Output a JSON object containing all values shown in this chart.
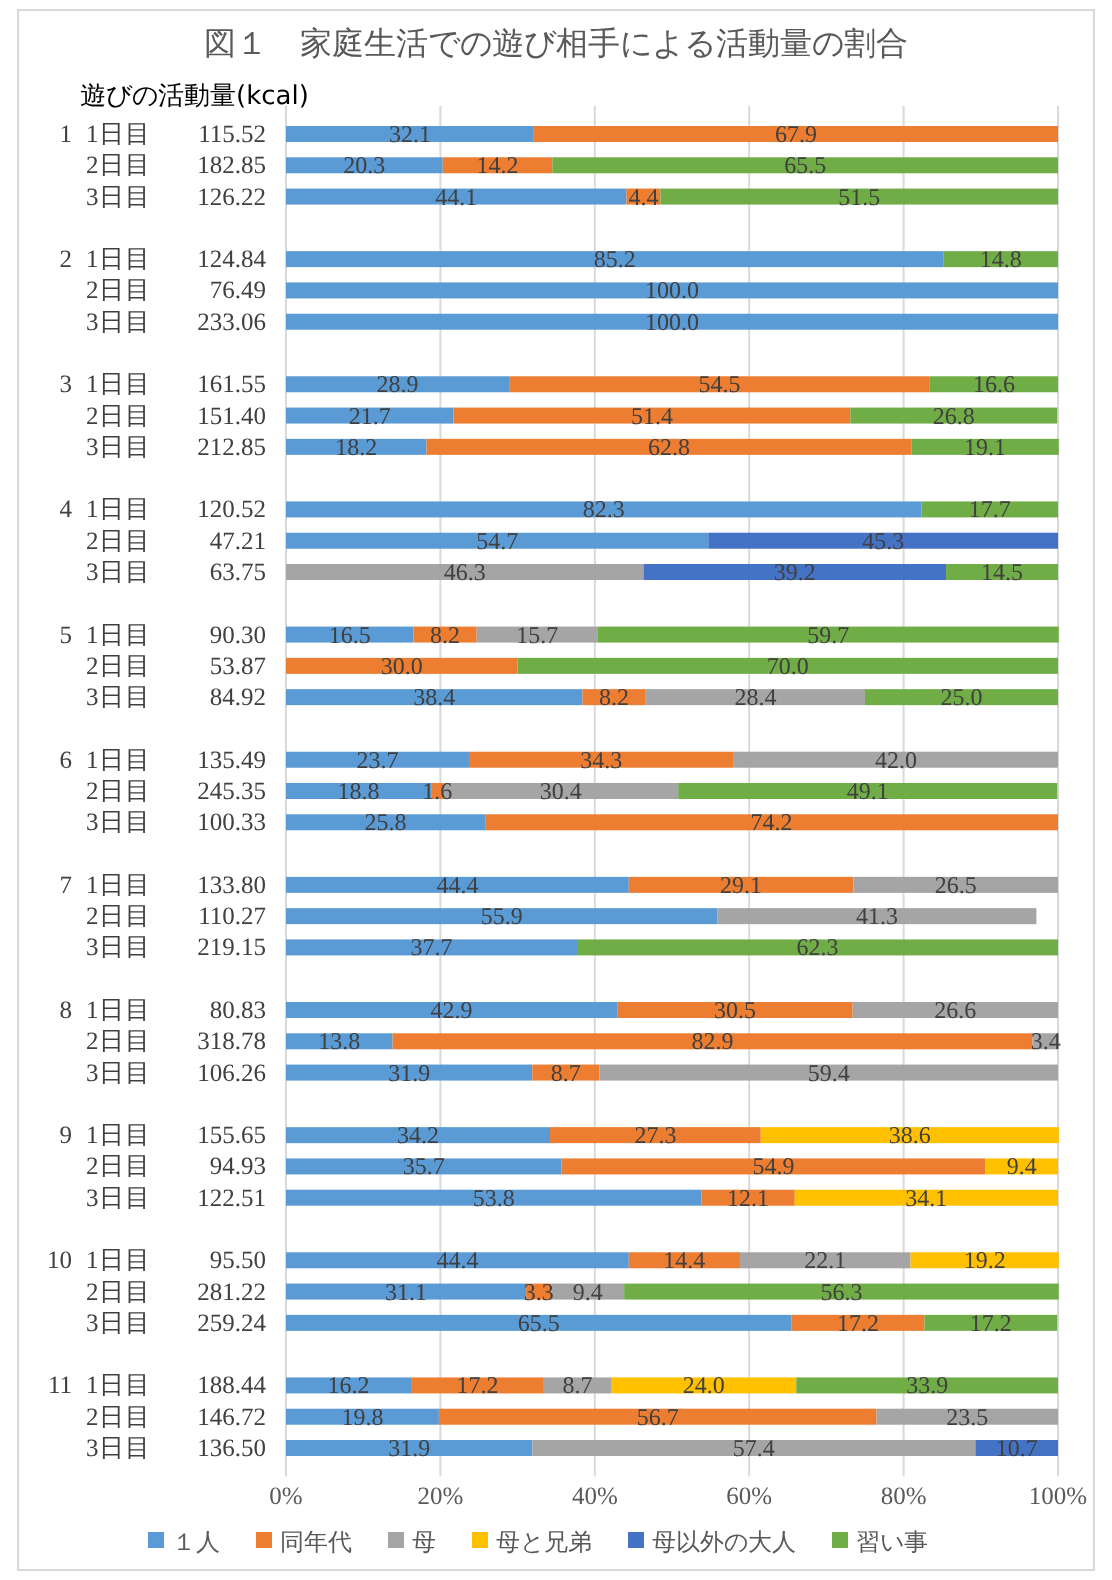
{
  "chart_data": {
    "type": "bar",
    "orientation": "horizontal",
    "stacked": true,
    "title": "図１　家庭生活での遊び相手による活動量の割合",
    "ylabel": "遊びの活動量(kcal)",
    "categories": [
      "1\t1日目\t115.52",
      "\t2日目\t182.85",
      "\t3日目\t126.22",
      null,
      "2\t1日目\t124.84",
      "\t2日目\t76.49",
      "\t3日目\t233.06",
      null,
      "3\t1日目\t161.55",
      "\t2日目\t151.40",
      "\t3日目\t212.85",
      null,
      "4\t1日目\t120.52",
      "\t2日目\t47.21",
      "\t3日目\t63.75",
      null,
      "5\t1日目\t90.30",
      "\t2日目\t53.87",
      "\t3日目\t84.92",
      null,
      "6\t1日目\t135.49",
      "\t2日目\t245.35",
      "\t3日目\t100.33",
      null,
      "7\t1日目\t133.80",
      "\t2日目\t110.27",
      "\t3日目\t219.15",
      null,
      "8\t1日目\t80.83",
      "\t2日目\t318.78",
      "\t3日目\t106.26",
      null,
      "9\t1日目\t155.65",
      "\t2日目\t94.93",
      "\t3日目\t122.51",
      null,
      "10\t1日目\t95.50",
      "\t2日目\t281.22",
      "\t3日目\t259.24",
      null,
      "11\t1日目\t188.44",
      "\t2日目\t146.72",
      "\t3日目\t136.50"
    ],
    "series": [
      {
        "name": "１人",
        "color": "#5b9bd5",
        "values": [
          32.1,
          20.3,
          44.1,
          null,
          85.2,
          100.0,
          100.0,
          null,
          28.9,
          21.7,
          18.2,
          null,
          82.3,
          54.7,
          null,
          null,
          16.5,
          null,
          38.4,
          null,
          23.7,
          18.8,
          25.8,
          null,
          44.4,
          55.9,
          37.7,
          null,
          42.9,
          13.8,
          31.9,
          null,
          34.2,
          35.7,
          53.8,
          null,
          44.4,
          31.1,
          65.5,
          null,
          16.2,
          19.8,
          31.9
        ],
        "value_labels": [
          "32.1",
          "20.3",
          "44.1",
          null,
          "85.2",
          "100.0",
          "100.0",
          null,
          "28.9",
          "21.7",
          "18.2",
          null,
          "82.3",
          "54.7",
          null,
          null,
          "16.5",
          null,
          "38.4",
          null,
          "23.7",
          "18.8",
          "25.8",
          null,
          "44.4",
          "55.9",
          "37.7",
          null,
          "42.9",
          "13.8",
          "31.9",
          null,
          "34.2",
          "35.7",
          "53.8",
          null,
          "44.4",
          "31.1",
          "65.5",
          null,
          "16.2",
          "19.8",
          "31.9"
        ]
      },
      {
        "name": "同年代",
        "color": "#ed7d31",
        "values": [
          67.9,
          14.2,
          4.4,
          null,
          null,
          null,
          null,
          null,
          54.5,
          51.4,
          62.8,
          null,
          null,
          null,
          null,
          null,
          8.2,
          30.0,
          8.2,
          null,
          34.3,
          1.6,
          74.2,
          null,
          29.1,
          null,
          null,
          null,
          30.5,
          82.9,
          8.7,
          null,
          27.3,
          54.9,
          12.1,
          null,
          14.4,
          3.3,
          17.2,
          null,
          17.2,
          56.7,
          null
        ],
        "value_labels": [
          "67.9",
          "14.2",
          "4.4",
          null,
          null,
          null,
          null,
          null,
          "54.5",
          "51.4",
          "62.8",
          null,
          null,
          null,
          null,
          null,
          "8.2",
          "30.0",
          "8.2",
          null,
          "34.3",
          "1.6",
          "74.2",
          null,
          "29.1",
          null,
          null,
          null,
          "30.5",
          "82.9",
          "8.7",
          null,
          "27.3",
          "54.9",
          "12.1",
          null,
          "14.4",
          "3.3",
          "17.2",
          null,
          "17.2",
          "56.7",
          null
        ]
      },
      {
        "name": "母",
        "color": "#a5a5a5",
        "values": [
          null,
          null,
          null,
          null,
          null,
          null,
          null,
          null,
          null,
          null,
          null,
          null,
          null,
          null,
          46.3,
          null,
          15.7,
          null,
          28.4,
          null,
          42.0,
          30.4,
          null,
          null,
          26.5,
          41.3,
          null,
          null,
          26.6,
          3.4,
          59.4,
          null,
          null,
          null,
          null,
          null,
          22.1,
          9.4,
          null,
          null,
          8.7,
          23.5,
          57.4
        ],
        "value_labels": [
          null,
          null,
          null,
          null,
          null,
          null,
          null,
          null,
          null,
          null,
          null,
          null,
          null,
          null,
          "46.3",
          null,
          "15.7",
          null,
          "28.4",
          null,
          "42.0",
          "30.4",
          null,
          null,
          "26.5",
          "41.3",
          null,
          null,
          "26.6",
          "3.4",
          "59.4",
          null,
          null,
          null,
          null,
          null,
          "22.1",
          "9.4",
          null,
          null,
          "8.7",
          "23.5",
          "57.4"
        ]
      },
      {
        "name": "母と兄弟",
        "color": "#ffc000",
        "values": [
          null,
          null,
          null,
          null,
          null,
          null,
          null,
          null,
          null,
          null,
          null,
          null,
          null,
          null,
          null,
          null,
          null,
          null,
          null,
          null,
          null,
          null,
          null,
          null,
          null,
          null,
          null,
          null,
          null,
          null,
          null,
          null,
          38.6,
          9.4,
          34.1,
          null,
          19.2,
          null,
          null,
          null,
          24.0,
          null,
          null
        ],
        "value_labels": [
          null,
          null,
          null,
          null,
          null,
          null,
          null,
          null,
          null,
          null,
          null,
          null,
          null,
          null,
          null,
          null,
          null,
          null,
          null,
          null,
          null,
          null,
          null,
          null,
          null,
          null,
          null,
          null,
          null,
          null,
          null,
          null,
          "38.6",
          "9.4",
          "34.1",
          null,
          "19.2",
          null,
          null,
          null,
          "24.0",
          null,
          null
        ]
      },
      {
        "name": "母以外の大人",
        "color": "#4472c4",
        "values": [
          null,
          null,
          null,
          null,
          null,
          null,
          null,
          null,
          null,
          null,
          null,
          null,
          null,
          45.3,
          39.2,
          null,
          null,
          null,
          null,
          null,
          null,
          null,
          null,
          null,
          null,
          null,
          null,
          null,
          null,
          null,
          null,
          null,
          null,
          null,
          null,
          null,
          null,
          null,
          null,
          null,
          null,
          null,
          10.7
        ],
        "value_labels": [
          null,
          null,
          null,
          null,
          null,
          null,
          null,
          null,
          null,
          null,
          null,
          null,
          null,
          "45.3",
          "39.2",
          null,
          null,
          null,
          null,
          null,
          null,
          null,
          null,
          null,
          null,
          null,
          null,
          null,
          null,
          null,
          null,
          null,
          null,
          null,
          null,
          null,
          null,
          null,
          null,
          null,
          null,
          null,
          "10.7"
        ]
      },
      {
        "name": "習い事",
        "color": "#70ad47",
        "values": [
          null,
          65.5,
          51.5,
          null,
          14.8,
          null,
          null,
          null,
          16.6,
          26.8,
          19.1,
          null,
          17.7,
          null,
          14.5,
          null,
          59.7,
          70.0,
          25.0,
          null,
          null,
          49.1,
          null,
          null,
          null,
          null,
          62.3,
          null,
          null,
          null,
          null,
          null,
          null,
          null,
          null,
          null,
          null,
          56.3,
          17.2,
          null,
          33.9,
          null,
          null
        ],
        "value_labels": [
          null,
          "65.5",
          "51.5",
          null,
          "14.8",
          null,
          null,
          null,
          "16.6",
          "26.8",
          "19.1",
          null,
          "17.7",
          null,
          "14.5",
          null,
          "59.7",
          "70.0",
          "25.0",
          null,
          null,
          "49.1",
          null,
          null,
          null,
          null,
          "62.3",
          null,
          null,
          null,
          null,
          null,
          null,
          null,
          null,
          null,
          null,
          "56.3",
          "17.2",
          null,
          "33.9",
          null,
          null
        ]
      }
    ],
    "xlim": [
      0,
      100
    ],
    "xticks": [
      {
        "value": 0,
        "label": "0%"
      },
      {
        "value": 20,
        "label": "20%"
      },
      {
        "value": 40,
        "label": "40%"
      },
      {
        "value": 60,
        "label": "60%"
      },
      {
        "value": 80,
        "label": "80%"
      },
      {
        "value": 100,
        "label": "100%"
      }
    ],
    "grid": "x",
    "legend": "bottom"
  }
}
